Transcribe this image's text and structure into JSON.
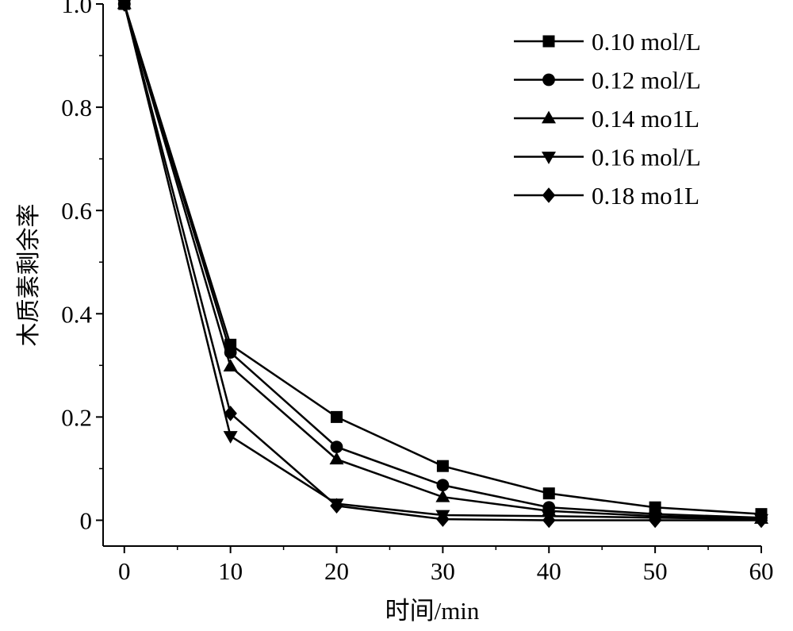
{
  "colors": {
    "ink": "#000000",
    "background": "#ffffff"
  },
  "chart_data": {
    "type": "line",
    "title": "",
    "xlabel": "时间/min",
    "ylabel": "木质素剩余率",
    "x": [
      0,
      10,
      20,
      30,
      40,
      50,
      60
    ],
    "xlim": [
      -2,
      60
    ],
    "ylim": [
      -0.05,
      1.0
    ],
    "xticks": [
      0,
      10,
      20,
      30,
      40,
      50,
      60
    ],
    "xtick_labels": [
      "0",
      "10",
      "20",
      "30",
      "40",
      "50",
      "60"
    ],
    "yticks": [
      0,
      0.2,
      0.4,
      0.6,
      0.8,
      1.0
    ],
    "ytick_labels": [
      "0",
      "0.2",
      "0.4",
      "0.6",
      "0.8",
      "1.0"
    ],
    "grid": false,
    "legend_position": "top-right",
    "series": [
      {
        "name": "0.10 mol/L",
        "marker": "square",
        "values": [
          1.0,
          0.34,
          0.2,
          0.105,
          0.052,
          0.025,
          0.012
        ]
      },
      {
        "name": "0.12 mol/L",
        "marker": "circle",
        "values": [
          1.0,
          0.325,
          0.142,
          0.068,
          0.025,
          0.012,
          0.005
        ]
      },
      {
        "name": "0.14 mo1L",
        "marker": "triangle-up",
        "values": [
          1.0,
          0.298,
          0.118,
          0.045,
          0.018,
          0.008,
          0.003
        ]
      },
      {
        "name": "0.16 mol/L",
        "marker": "triangle-down",
        "values": [
          1.0,
          0.163,
          0.032,
          0.01,
          0.008,
          0.005,
          0.002
        ]
      },
      {
        "name": "0.18 mo1L",
        "marker": "diamond",
        "values": [
          1.0,
          0.207,
          0.028,
          0.002,
          0.0,
          0.0,
          0.0
        ]
      }
    ]
  }
}
